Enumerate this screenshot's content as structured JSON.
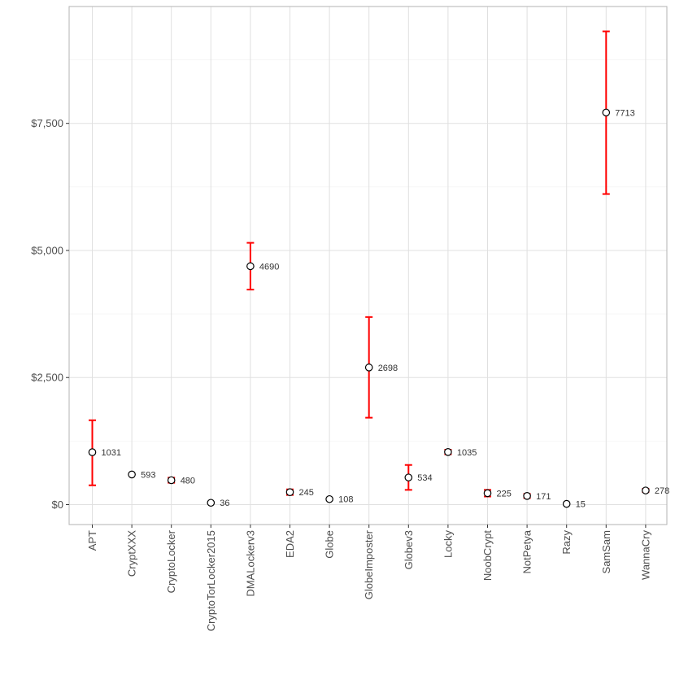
{
  "chart_data": {
    "type": "scatter",
    "title": "",
    "xlabel": "",
    "ylabel": "",
    "ylim": [
      -400,
      9800
    ],
    "yticks": [
      {
        "value": 0,
        "label": "$0"
      },
      {
        "value": 2500,
        "label": "$2,500"
      },
      {
        "value": 5000,
        "label": "$5,000"
      },
      {
        "value": 7500,
        "label": "$7,500"
      }
    ],
    "categories": [
      "APT",
      "CryptXXX",
      "CryptoLocker",
      "CryptoTorLocker2015",
      "DMALockerv3",
      "EDA2",
      "Globe",
      "GlobeImposter",
      "Globev3",
      "Locky",
      "NoobCrypt",
      "NotPetya",
      "Razy",
      "SamSam",
      "WannaCry"
    ],
    "points": [
      {
        "category": "APT",
        "value": 1031,
        "label": "1031",
        "low": 380,
        "high": 1660
      },
      {
        "category": "CryptXXX",
        "value": 593,
        "label": "593",
        "low": null,
        "high": null
      },
      {
        "category": "CryptoLocker",
        "value": 480,
        "label": "480",
        "low": 430,
        "high": 530
      },
      {
        "category": "CryptoTorLocker2015",
        "value": 36,
        "label": "36",
        "low": null,
        "high": null
      },
      {
        "category": "DMALockerv3",
        "value": 4690,
        "label": "4690",
        "low": 4230,
        "high": 5150
      },
      {
        "category": "EDA2",
        "value": 245,
        "label": "245",
        "low": 190,
        "high": 300
      },
      {
        "category": "Globe",
        "value": 108,
        "label": "108",
        "low": null,
        "high": null
      },
      {
        "category": "GlobeImposter",
        "value": 2698,
        "label": "2698",
        "low": 1710,
        "high": 3690
      },
      {
        "category": "Globev3",
        "value": 534,
        "label": "534",
        "low": 290,
        "high": 780
      },
      {
        "category": "Locky",
        "value": 1035,
        "label": "1035",
        "low": 990,
        "high": 1080
      },
      {
        "category": "NoobCrypt",
        "value": 225,
        "label": "225",
        "low": 160,
        "high": 290
      },
      {
        "category": "NotPetya",
        "value": 171,
        "label": "171",
        "low": 130,
        "high": 210
      },
      {
        "category": "Razy",
        "value": 15,
        "label": "15",
        "low": null,
        "high": null
      },
      {
        "category": "SamSam",
        "value": 7713,
        "label": "7713",
        "low": 6110,
        "high": 9310
      },
      {
        "category": "WannaCry",
        "value": 278,
        "label": "278",
        "low": 250,
        "high": 310
      }
    ],
    "grid": true,
    "legend": "none",
    "colors": {
      "errorbar": "#ff0000",
      "point_fill": "#ffffff",
      "point_stroke": "#000000",
      "grid_major": "#e0e0e0",
      "grid_minor": "#f0f0f0",
      "panel_border": "#b3b3b3"
    }
  }
}
